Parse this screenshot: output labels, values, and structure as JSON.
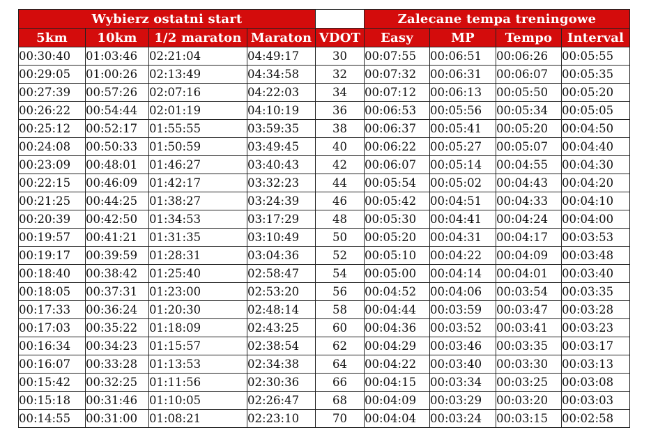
{
  "header": {
    "group_left": "Wybierz ostatni start",
    "group_right": "Zalecane tempa treningowe",
    "columns": [
      "5km",
      "10km",
      "1/2 maraton",
      "Maraton",
      "VDOT",
      "Easy",
      "MP",
      "Tempo",
      "Interval"
    ]
  },
  "rows": [
    [
      "00:30:40",
      "01:03:46",
      "02:21:04",
      "04:49:17",
      "30",
      "00:07:55",
      "00:06:51",
      "00:06:26",
      "00:05:55"
    ],
    [
      "00:29:05",
      "01:00:26",
      "02:13:49",
      "04:34:58",
      "32",
      "00:07:32",
      "00:06:31",
      "00:06:07",
      "00:05:35"
    ],
    [
      "00:27:39",
      "00:57:26",
      "02:07:16",
      "04:22:03",
      "34",
      "00:07:12",
      "00:06:13",
      "00:05:50",
      "00:05:20"
    ],
    [
      "00:26:22",
      "00:54:44",
      "02:01:19",
      "04:10:19",
      "36",
      "00:06:53",
      "00:05:56",
      "00:05:34",
      "00:05:05"
    ],
    [
      "00:25:12",
      "00:52:17",
      "01:55:55",
      "03:59:35",
      "38",
      "00:06:37",
      "00:05:41",
      "00:05:20",
      "00:04:50"
    ],
    [
      "00:24:08",
      "00:50:33",
      "01:50:59",
      "03:49:45",
      "40",
      "00:06:22",
      "00:05:27",
      "00:05:07",
      "00:04:40"
    ],
    [
      "00:23:09",
      "00:48:01",
      "01:46:27",
      "03:40:43",
      "42",
      "00:06:07",
      "00:05:14",
      "00:04:55",
      "00:04:30"
    ],
    [
      "00:22:15",
      "00:46:09",
      "01:42:17",
      "03:32:23",
      "44",
      "00:05:54",
      "00:05:02",
      "00:04:43",
      "00:04:20"
    ],
    [
      "00:21:25",
      "00:44:25",
      "01:38:27",
      "03:24:39",
      "46",
      "00:05:42",
      "00:04:51",
      "00:04:33",
      "00:04:10"
    ],
    [
      "00:20:39",
      "00:42:50",
      "01:34:53",
      "03:17:29",
      "48",
      "00:05:30",
      "00:04:41",
      "00:04:24",
      "00:04:00"
    ],
    [
      "00:19:57",
      "00:41:21",
      "01:31:35",
      "03:10:49",
      "50",
      "00:05:20",
      "00:04:31",
      "00:04:17",
      "00:03:53"
    ],
    [
      "00:19:17",
      "00:39:59",
      "01:28:31",
      "03:04:36",
      "52",
      "00:05:10",
      "00:04:22",
      "00:04:09",
      "00:03:48"
    ],
    [
      "00:18:40",
      "00:38:42",
      "01:25:40",
      "02:58:47",
      "54",
      "00:05:00",
      "00:04:14",
      "00:04:01",
      "00:03:40"
    ],
    [
      "00:18:05",
      "00:37:31",
      "01:23:00",
      "02:53:20",
      "56",
      "00:04:52",
      "00:04:06",
      "00:03:54",
      "00:03:35"
    ],
    [
      "00:17:33",
      "00:36:24",
      "01:20:30",
      "02:48:14",
      "58",
      "00:04:44",
      "00:03:59",
      "00:03:47",
      "00:03:28"
    ],
    [
      "00:17:03",
      "00:35:22",
      "01:18:09",
      "02:43:25",
      "60",
      "00:04:36",
      "00:03:52",
      "00:03:41",
      "00:03:23"
    ],
    [
      "00:16:34",
      "00:34:23",
      "01:15:57",
      "02:38:54",
      "62",
      "00:04:29",
      "00:03:46",
      "00:03:35",
      "00:03:17"
    ],
    [
      "00:16:07",
      "00:33:28",
      "01:13:53",
      "02:34:38",
      "64",
      "00:04:22",
      "00:03:40",
      "00:03:30",
      "00:03:13"
    ],
    [
      "00:15:42",
      "00:32:25",
      "01:11:56",
      "02:30:36",
      "66",
      "00:04:15",
      "00:03:34",
      "00:03:25",
      "00:03:08"
    ],
    [
      "00:15:18",
      "00:31:46",
      "01:10:05",
      "02:26:47",
      "68",
      "00:04:09",
      "00:03:29",
      "00:03:20",
      "00:03:03"
    ],
    [
      "00:14:55",
      "00:31:00",
      "01:08:21",
      "02:23:10",
      "70",
      "00:04:04",
      "00:03:24",
      "00:03:15",
      "00:02:58"
    ]
  ],
  "colors": {
    "header_bg": "#d40c0c",
    "header_text": "#ffffff",
    "border": "#222222"
  }
}
